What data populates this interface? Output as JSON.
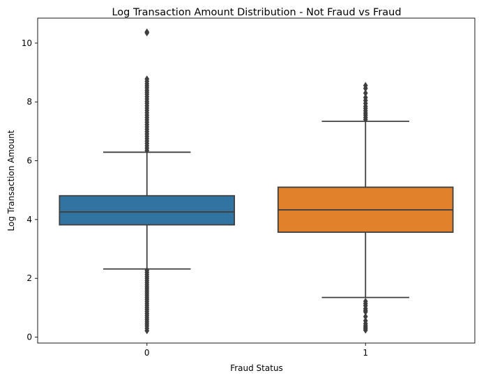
{
  "chart_data": {
    "type": "box",
    "title": "Log Transaction Amount Distribution - Not Fraud vs Fraud",
    "xlabel": "Fraud Status",
    "ylabel": "Log Transaction Amount",
    "categories": [
      "0",
      "1"
    ],
    "ylim": [
      -0.2,
      10.85
    ],
    "yticks": [
      0,
      2,
      4,
      6,
      8,
      10
    ],
    "grid": false,
    "legend": "none",
    "boxes": [
      {
        "category": "0",
        "color": "#3274a1",
        "whisker_low": 2.32,
        "q1": 3.82,
        "median": 4.26,
        "q3": 4.81,
        "whisker_high": 6.29,
        "outliers": [
          10.38,
          10.35,
          8.78,
          8.7,
          8.62,
          8.55,
          8.48,
          8.4,
          8.33,
          8.26,
          8.18,
          8.1,
          8.02,
          7.95,
          7.87,
          7.79,
          7.71,
          7.63,
          7.55,
          7.47,
          7.39,
          7.31,
          7.23,
          7.15,
          7.07,
          6.99,
          6.91,
          6.83,
          6.75,
          6.67,
          6.59,
          6.51,
          6.43,
          6.35,
          2.27,
          2.2,
          2.13,
          2.06,
          1.99,
          1.92,
          1.85,
          1.78,
          1.71,
          1.64,
          1.57,
          1.5,
          1.43,
          1.36,
          1.29,
          1.22,
          1.15,
          1.08,
          1.01,
          0.94,
          0.87,
          0.8,
          0.73,
          0.66,
          0.59,
          0.52,
          0.45,
          0.38,
          0.3,
          0.22
        ]
      },
      {
        "category": "1",
        "color": "#e1812c",
        "whisker_low": 1.35,
        "q1": 3.57,
        "median": 4.33,
        "q3": 5.1,
        "whisker_high": 7.34,
        "outliers": [
          8.56,
          8.46,
          8.3,
          8.15,
          8.05,
          7.95,
          7.85,
          7.78,
          7.7,
          7.62,
          7.55,
          7.47,
          7.4,
          1.22,
          1.14,
          1.07,
          0.97,
          0.91,
          0.86,
          0.7,
          0.56,
          0.46,
          0.39,
          0.34,
          0.29,
          0.24
        ]
      }
    ]
  }
}
